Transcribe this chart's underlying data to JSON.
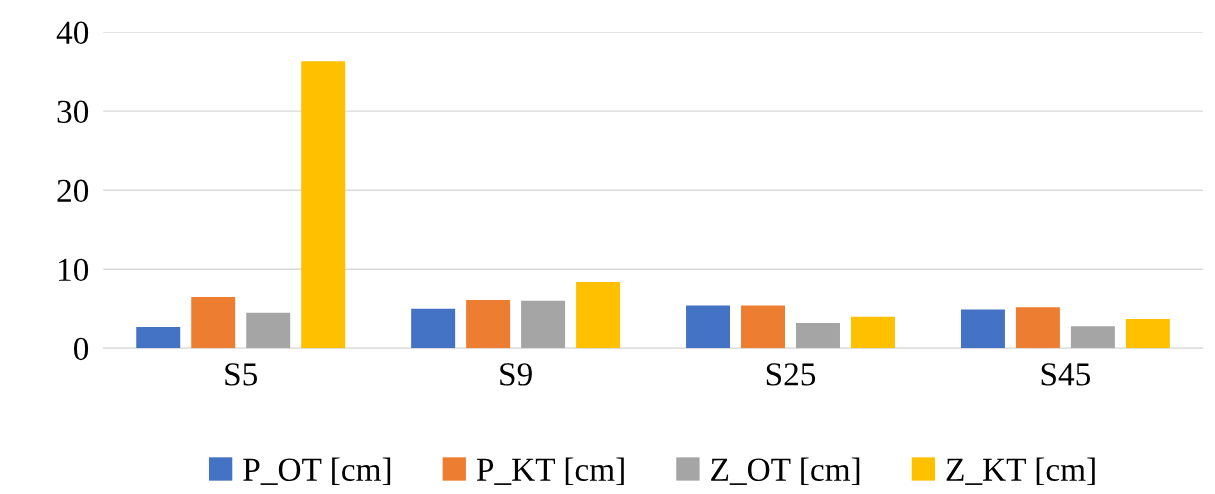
{
  "chart_data": {
    "type": "bar",
    "categories": [
      "S5",
      "S9",
      "S25",
      "S45"
    ],
    "series": [
      {
        "name": "P_OT [cm]",
        "color": "#4472c4",
        "values": [
          2.7,
          5.0,
          5.4,
          4.9
        ]
      },
      {
        "name": "P_KT [cm]",
        "color": "#ed7d31",
        "values": [
          6.5,
          6.1,
          5.4,
          5.2
        ]
      },
      {
        "name": "Z_OT [cm]",
        "color": "#a5a5a5",
        "values": [
          4.5,
          6.0,
          3.2,
          2.8
        ]
      },
      {
        "name": "Z_KT [cm]",
        "color": "#ffc000",
        "values": [
          36.3,
          8.4,
          4.0,
          3.7
        ]
      }
    ],
    "ylim": [
      0,
      40
    ],
    "yticks": [
      0,
      10,
      20,
      30,
      40
    ],
    "grid": "y",
    "legend": "bottom"
  }
}
